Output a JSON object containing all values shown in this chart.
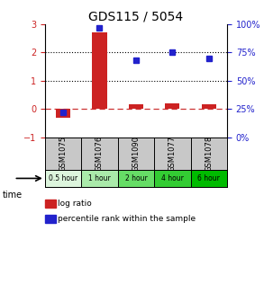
{
  "title": "GDS115 / 5054",
  "samples": [
    "GSM1075",
    "GSM1076",
    "GSM1090",
    "GSM1077",
    "GSM1078"
  ],
  "time_labels": [
    "0.5 hour",
    "1 hour",
    "2 hour",
    "4 hour",
    "6 hour"
  ],
  "log_ratios": [
    -0.3,
    2.7,
    0.15,
    0.2,
    0.15
  ],
  "percentile_ranks": [
    22,
    97,
    68,
    75,
    70
  ],
  "left_ylim": [
    -1,
    3
  ],
  "right_ylim": [
    0,
    100
  ],
  "left_yticks": [
    -1,
    0,
    1,
    2,
    3
  ],
  "right_yticks": [
    0,
    25,
    50,
    75,
    100
  ],
  "right_yticklabels": [
    "0%",
    "25%",
    "50%",
    "75%",
    "100%"
  ],
  "bar_color": "#cc2222",
  "square_color": "#2222cc",
  "zero_line_color": "#cc3333",
  "dotted_line_color": "#000000",
  "time_colors": [
    "#ddf5dd",
    "#aaeaaa",
    "#66dd66",
    "#33cc33",
    "#00bb00"
  ],
  "sample_bg_color": "#c8c8c8",
  "bg_color": "#ffffff",
  "title_fontsize": 10,
  "tick_fontsize": 7,
  "label_fontsize": 7
}
